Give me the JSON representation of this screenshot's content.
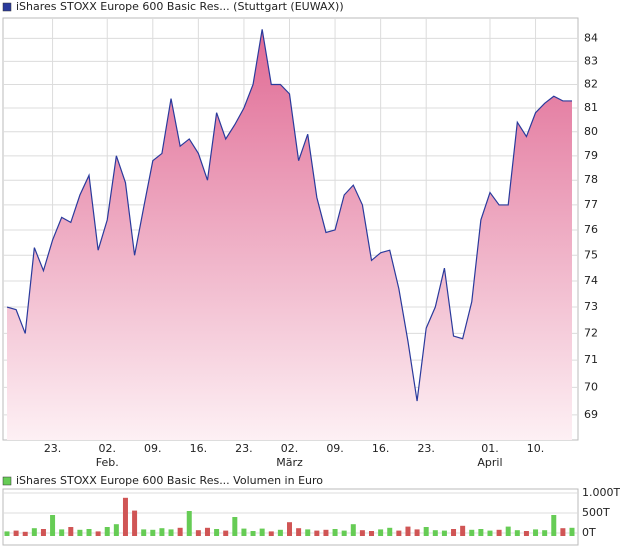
{
  "chart_data": [
    {
      "type": "area",
      "series": [
        {
          "name": "iShares STOXX Europe 600 Basic Res... (Stuttgart (EUWAX))",
          "color": "#2a3a9c",
          "values": [
            73.0,
            72.9,
            72.0,
            75.3,
            74.4,
            75.6,
            76.5,
            76.3,
            77.4,
            78.2,
            75.2,
            76.4,
            79.0,
            77.9,
            75.0,
            76.9,
            78.8,
            79.1,
            81.4,
            79.4,
            79.7,
            79.1,
            78.0,
            80.8,
            79.7,
            80.3,
            81.0,
            82.0,
            84.4,
            82.0,
            82.0,
            81.6,
            78.8,
            79.9,
            77.3,
            75.9,
            76.0,
            77.4,
            77.8,
            77.0,
            74.8,
            75.1,
            75.2,
            73.7,
            71.7,
            69.5,
            72.2,
            73.0,
            74.5,
            71.9,
            71.8,
            73.2,
            76.4,
            77.5,
            77.0,
            77.0,
            80.4,
            79.8,
            80.8,
            81.2,
            81.5,
            81.3,
            81.3
          ]
        }
      ],
      "categories": [
        null,
        null,
        null,
        null,
        null,
        "23.",
        null,
        null,
        null,
        null,
        null,
        "02.",
        null,
        null,
        null,
        null,
        "09.",
        null,
        null,
        null,
        null,
        "16.",
        null,
        null,
        null,
        null,
        "23.",
        null,
        null,
        null,
        null,
        "02.",
        null,
        null,
        null,
        null,
        "09.",
        null,
        null,
        null,
        null,
        "16.",
        null,
        null,
        null,
        null,
        "23.",
        null,
        null,
        null,
        null,
        null,
        null,
        "01.",
        null,
        null,
        null,
        null,
        "10.",
        null,
        null,
        null,
        null
      ],
      "category_groups": [
        null,
        null,
        null,
        null,
        null,
        null,
        null,
        null,
        null,
        null,
        null,
        "Feb.",
        null,
        null,
        null,
        null,
        null,
        null,
        null,
        null,
        null,
        null,
        null,
        null,
        null,
        null,
        null,
        null,
        null,
        null,
        null,
        "März",
        null,
        null,
        null,
        null,
        null,
        null,
        null,
        null,
        null,
        null,
        null,
        null,
        null,
        null,
        null,
        null,
        null,
        null,
        null,
        null,
        null,
        "April",
        null,
        null,
        null,
        null,
        null,
        null,
        null,
        null,
        null
      ],
      "ylim": [
        68.1,
        84.9
      ],
      "yticks": [
        69,
        70,
        71,
        72,
        73,
        74,
        75,
        76,
        77,
        78,
        79,
        80,
        81,
        82,
        83,
        84
      ],
      "log_scale": true,
      "grid": true,
      "fill_top": "#e06a94",
      "fill_bottom": "#fdf0f4"
    },
    {
      "type": "volume",
      "series": [
        {
          "name": "iShares STOXX Europe 600 Basic Res... Volumen in Euro",
          "color": "#66cc55",
          "down_color": "#d05555",
          "values": [
            40,
            60,
            30,
            120,
            100,
            450,
            90,
            150,
            80,
            100,
            40,
            150,
            220,
            880,
            560,
            90,
            80,
            120,
            90,
            130,
            550,
            70,
            130,
            100,
            60,
            400,
            110,
            50,
            110,
            40,
            80,
            270,
            120,
            90,
            60,
            80,
            100,
            60,
            220,
            70,
            50,
            90,
            130,
            60,
            160,
            90,
            150,
            70,
            60,
            100,
            180,
            80,
            100,
            60,
            80,
            160,
            70,
            50,
            90,
            70,
            450,
            120,
            130
          ]
        }
      ],
      "ylim": [
        0,
        1050
      ],
      "yticks": [
        {
          "value": 0,
          "label": "0T"
        },
        {
          "value": 500,
          "label": "500T"
        },
        {
          "value": 1000,
          "label": "1.000T"
        }
      ],
      "grid": true
    }
  ]
}
